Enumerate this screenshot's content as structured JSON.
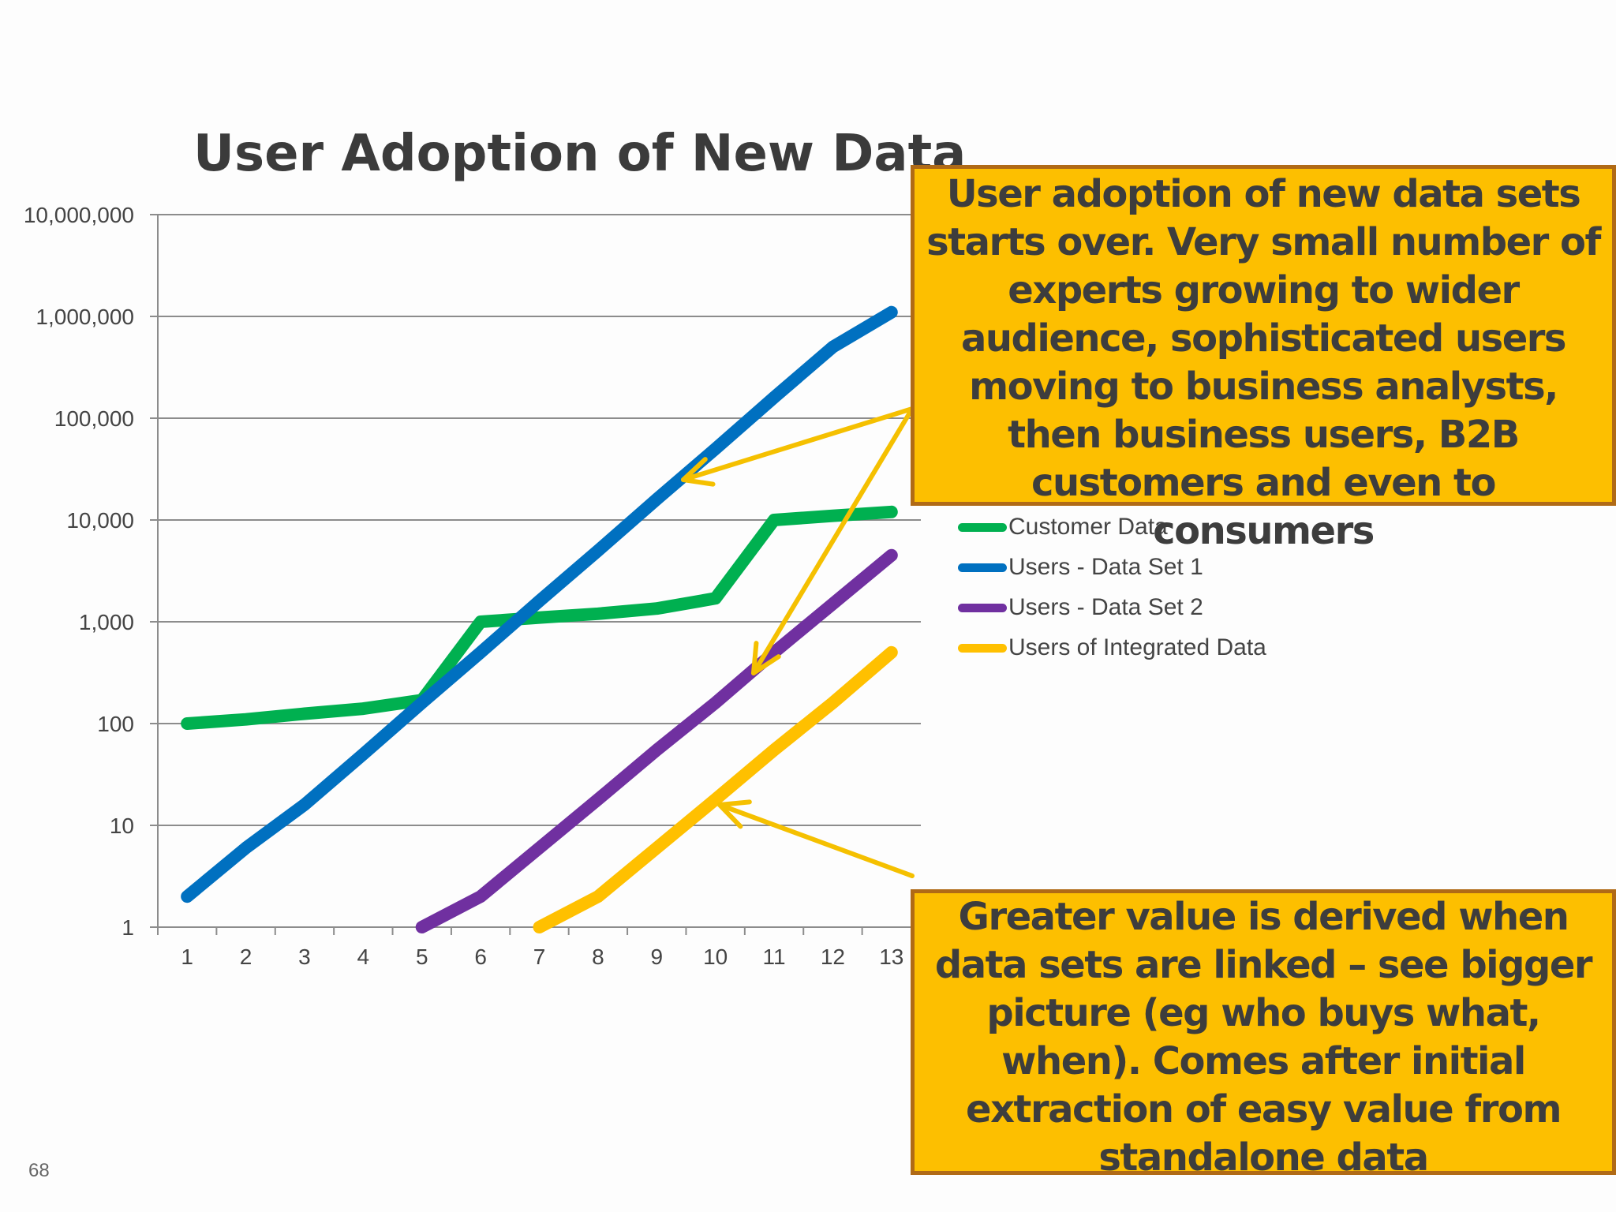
{
  "slide": {
    "page_number": "68"
  },
  "chart_data": {
    "type": "line",
    "title": "User Adoption of New Data",
    "xlabel": "",
    "ylabel": "",
    "x": [
      1,
      2,
      3,
      4,
      5,
      6,
      7,
      8,
      9,
      10,
      11,
      12,
      13
    ],
    "y_scale": "log",
    "ylim": [
      1,
      10000000
    ],
    "y_ticks": [
      1,
      10,
      100,
      1000,
      10000,
      100000,
      1000000,
      10000000
    ],
    "y_tick_labels": [
      "1",
      "10",
      "100",
      "1,000",
      "10,000",
      "100,000",
      "1,000,000",
      "10,000,000"
    ],
    "x_tick_labels": [
      "1",
      "2",
      "3",
      "4",
      "5",
      "6",
      "7",
      "8",
      "9",
      "10",
      "11",
      "12",
      "13"
    ],
    "grid": true,
    "legend_position": "right",
    "series": [
      {
        "name": "Customer Data",
        "color": "#00b050",
        "values": [
          100,
          110,
          125,
          140,
          170,
          1000,
          1100,
          1200,
          1350,
          1700,
          10000,
          11000,
          12000
        ]
      },
      {
        "name": "Users - Data Set 1",
        "color": "#0070c0",
        "values": [
          2,
          6,
          16,
          50,
          160,
          500,
          1600,
          5000,
          16000,
          50000,
          160000,
          500000,
          1100000
        ]
      },
      {
        "name": "Users - Data Set 2",
        "color": "#7030a0",
        "values": [
          null,
          null,
          null,
          null,
          1,
          2,
          6,
          18,
          55,
          160,
          500,
          1500,
          4500
        ]
      },
      {
        "name": "Users of Integrated Data",
        "color": "#ffc000",
        "values": [
          null,
          null,
          null,
          null,
          null,
          null,
          1,
          2,
          6,
          18,
          55,
          160,
          500
        ]
      }
    ]
  },
  "callouts": {
    "top": "User adoption of new data sets starts over. Very small number of experts growing to wider audience, sophisticated users moving to business analysts, then business users, B2B customers and even to consumers",
    "bottom": "Greater value is derived when data sets are linked – see bigger picture (eg who buys what, when). Comes after initial extraction of easy value from standalone data"
  },
  "colors": {
    "callout_fill": "#fdbf00",
    "callout_border": "#b06a16",
    "arrow": "#f5c000",
    "grid": "#8c8c8c"
  }
}
